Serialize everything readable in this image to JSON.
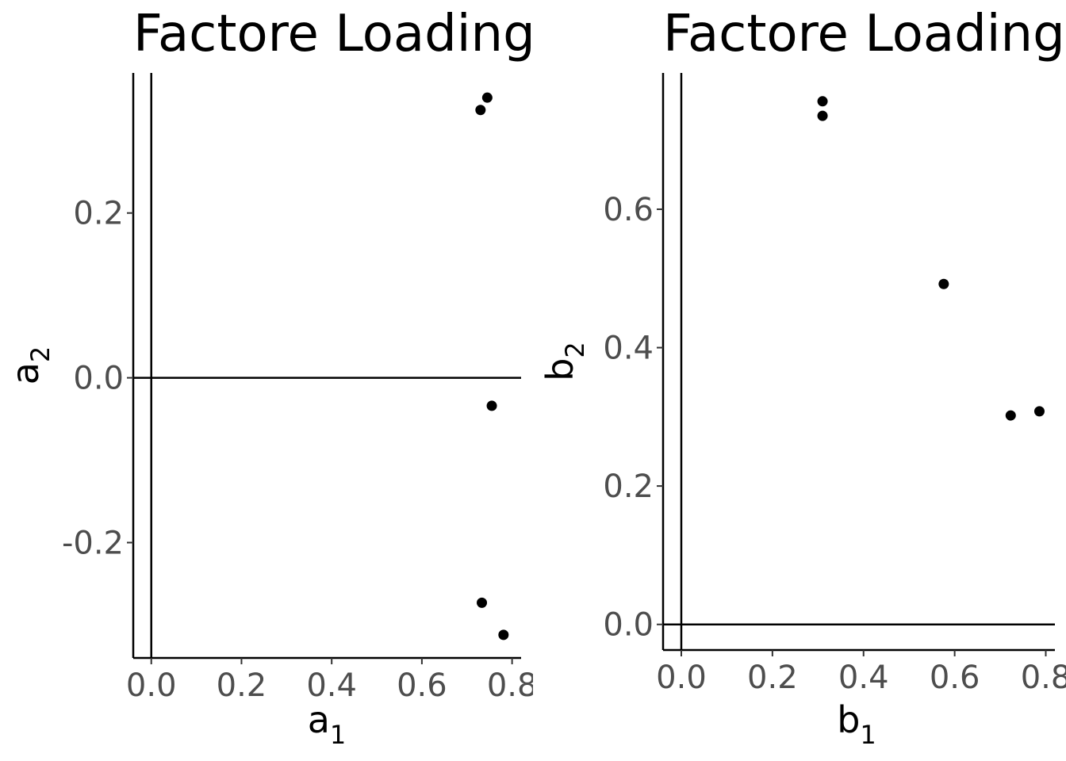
{
  "chart_data": [
    {
      "type": "scatter",
      "title": "Factore Loading",
      "xlabel": {
        "base": "a",
        "sub": "1"
      },
      "ylabel": {
        "base": "a",
        "sub": "2"
      },
      "xlim": [
        -0.04,
        0.82
      ],
      "ylim": [
        -0.34,
        0.37
      ],
      "x_ticks": [
        "0.0",
        "0.2",
        "0.4",
        "0.6",
        "0.8"
      ],
      "y_ticks": [
        "-0.2",
        "0.0",
        "0.2"
      ],
      "reference_lines": {
        "x": 0,
        "y": 0
      },
      "grid": false,
      "points": [
        {
          "x": 0.73,
          "y": 0.325
        },
        {
          "x": 0.745,
          "y": 0.34
        },
        {
          "x": 0.755,
          "y": -0.034
        },
        {
          "x": 0.733,
          "y": -0.273
        },
        {
          "x": 0.781,
          "y": -0.312
        }
      ]
    },
    {
      "type": "scatter",
      "title": "Factore Loading",
      "xlabel": {
        "base": "b",
        "sub": "1"
      },
      "ylabel": {
        "base": "b",
        "sub": "2"
      },
      "xlim": [
        -0.04,
        0.82
      ],
      "ylim": [
        -0.037,
        0.797
      ],
      "x_ticks": [
        "0.0",
        "0.2",
        "0.4",
        "0.6",
        "0.8"
      ],
      "y_ticks": [
        "0.0",
        "0.2",
        "0.4",
        "0.6"
      ],
      "reference_lines": {
        "x": 0,
        "y": 0
      },
      "grid": false,
      "points": [
        {
          "x": 0.31,
          "y": 0.756
        },
        {
          "x": 0.31,
          "y": 0.735
        },
        {
          "x": 0.576,
          "y": 0.492
        },
        {
          "x": 0.723,
          "y": 0.302
        },
        {
          "x": 0.786,
          "y": 0.308
        }
      ]
    }
  ]
}
